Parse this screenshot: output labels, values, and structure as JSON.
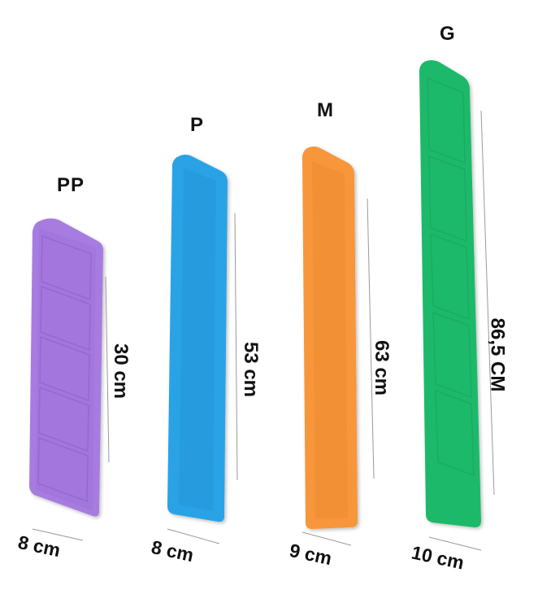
{
  "products": [
    {
      "size": "PP",
      "length": "30 cm",
      "width": "8 cm",
      "color": "#a77be0"
    },
    {
      "size": "P",
      "length": "53 cm",
      "width": "8 cm",
      "color": "#2aa3e6"
    },
    {
      "size": "M",
      "length": "63 cm",
      "width": "9 cm",
      "color": "#f7963a"
    },
    {
      "size": "G",
      "length": "86,5 CM",
      "width": "10 cm",
      "color": "#1fb96a"
    }
  ]
}
